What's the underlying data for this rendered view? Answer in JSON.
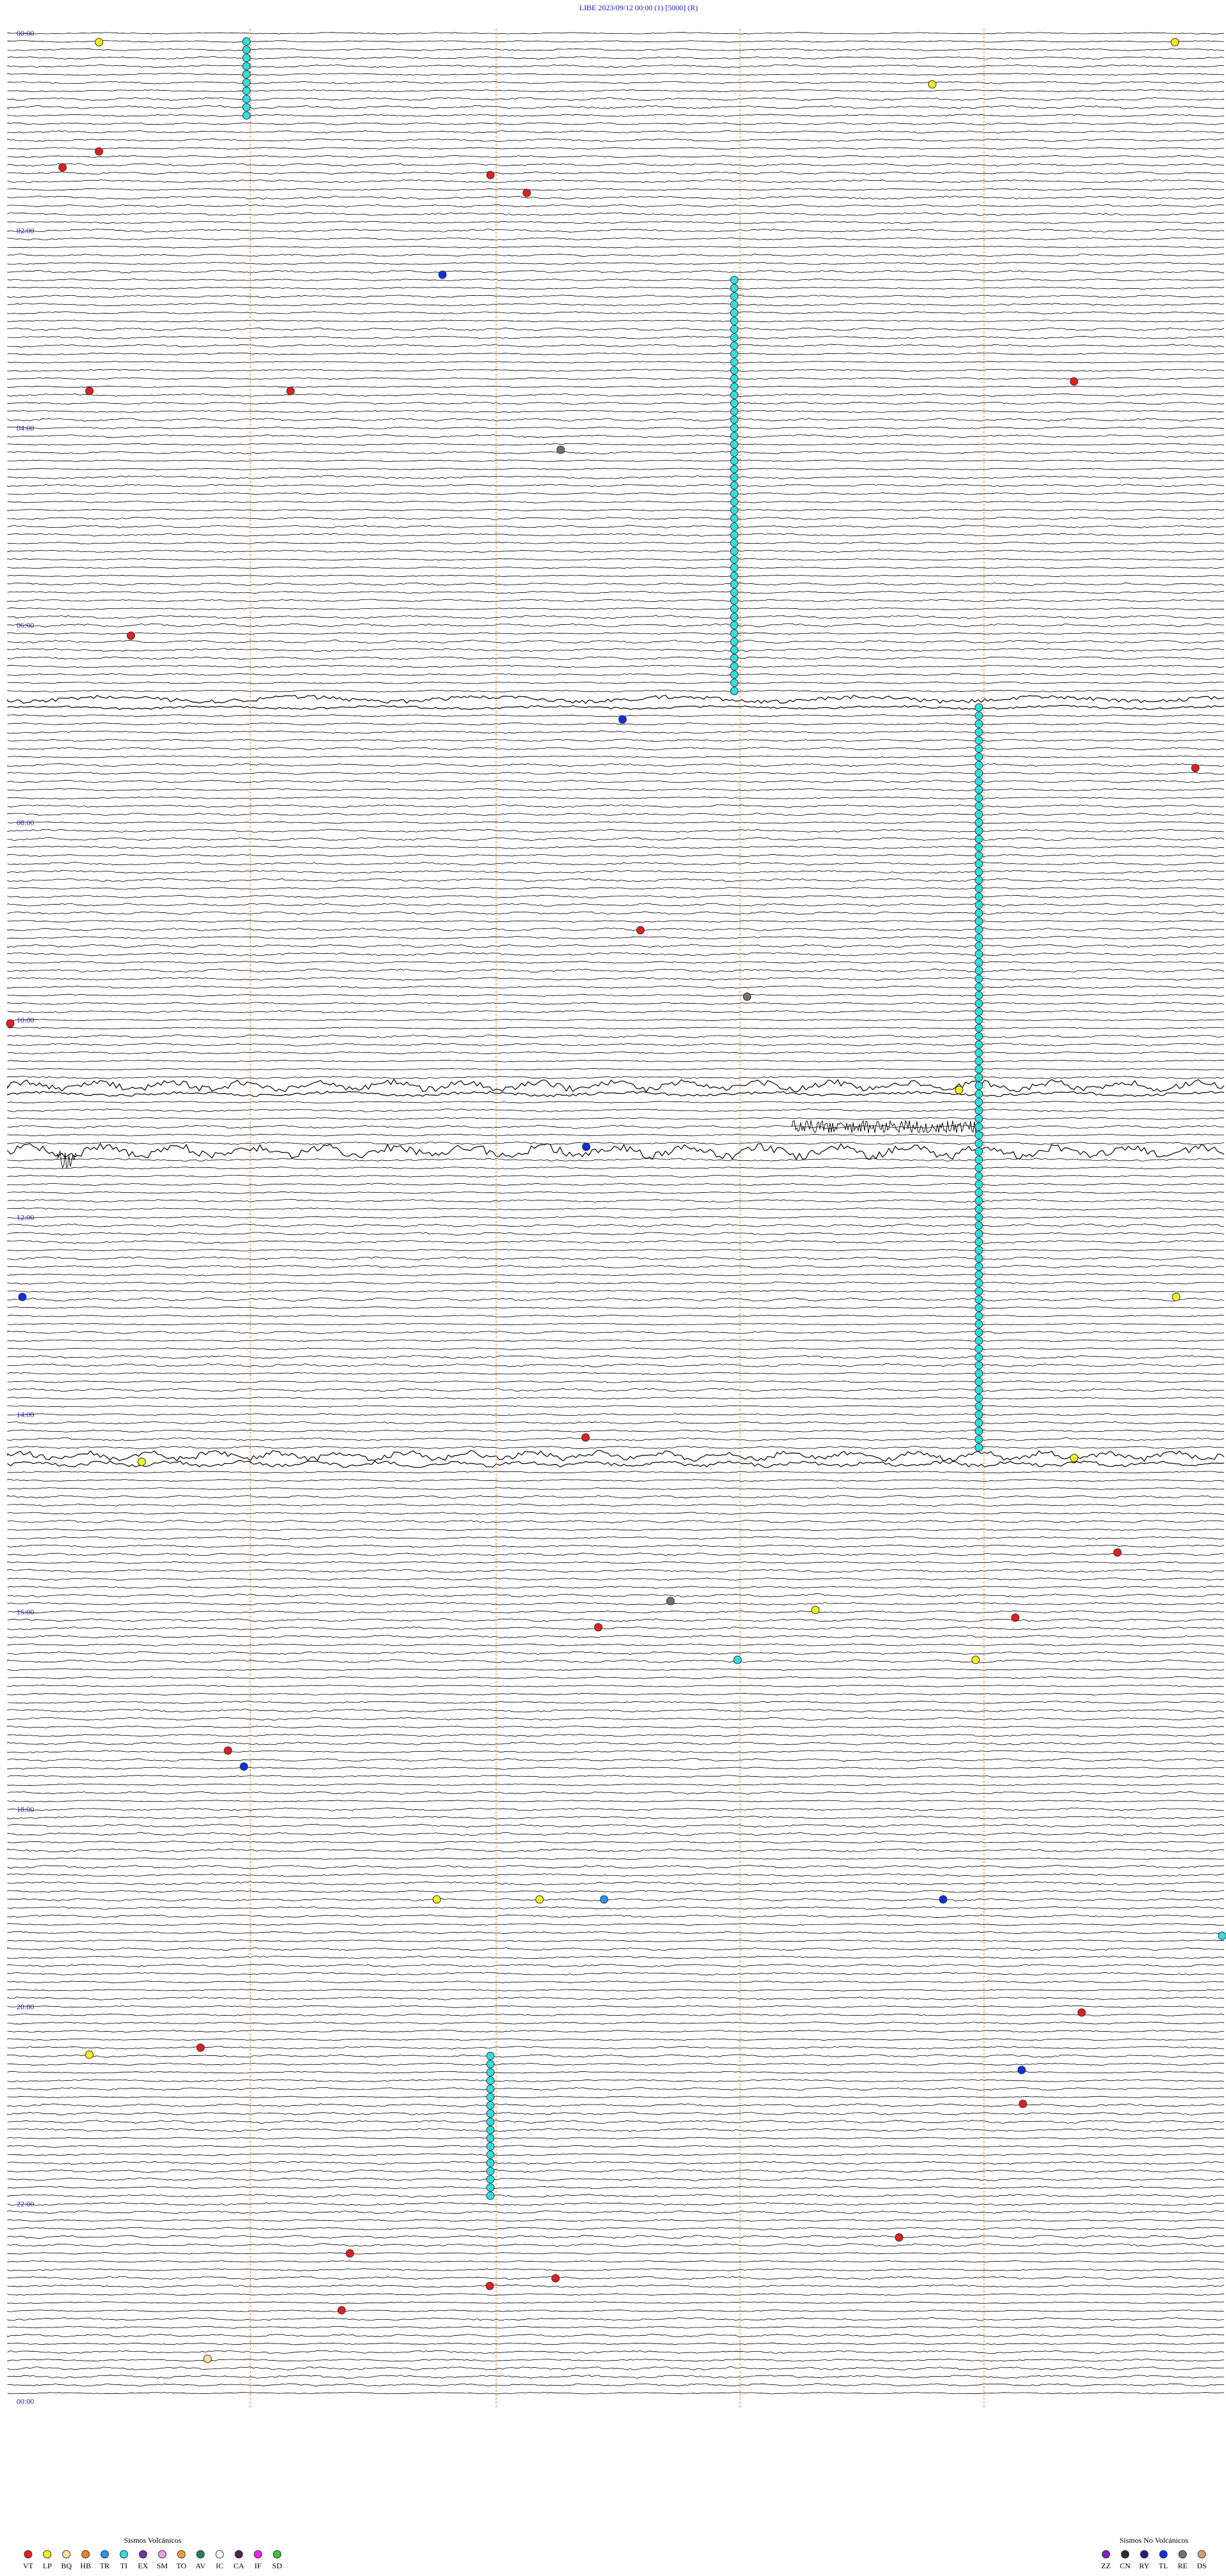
{
  "header": {
    "title": "LIBE    2023/09/12 00:00    (1)    [5000]    (R)"
  },
  "hour_labels": [
    "00:00",
    "02:00",
    "04:00",
    "06:00",
    "08:00",
    "10:00",
    "12:00",
    "14:00",
    "16:00",
    "18:00",
    "20:00",
    "22:00",
    "00:00"
  ],
  "legend": {
    "volcanic": {
      "title": "Sismos Volcánicos",
      "items": [
        {
          "code": "VT",
          "color": "#e02020"
        },
        {
          "code": "LP",
          "color": "#f0f020"
        },
        {
          "code": "BQ",
          "color": "#ffe0a0"
        },
        {
          "code": "HB",
          "color": "#f08020"
        },
        {
          "code": "TR",
          "color": "#3090f0"
        },
        {
          "code": "TI",
          "color": "#30e0e0"
        },
        {
          "code": "EX",
          "color": "#7030a0"
        },
        {
          "code": "SM",
          "color": "#f0a0e0"
        },
        {
          "code": "TO",
          "color": "#f0a030"
        },
        {
          "code": "AV",
          "color": "#208060"
        },
        {
          "code": "IC",
          "color": "#ffffff"
        },
        {
          "code": "CA",
          "color": "#502050"
        },
        {
          "code": "IF",
          "color": "#f020f0"
        },
        {
          "code": "SD",
          "color": "#40c040"
        }
      ]
    },
    "non_volcanic": {
      "title": "Sismos No Volcánicos",
      "items": [
        {
          "code": "ZZ",
          "color": "#8020c0"
        },
        {
          "code": "CN",
          "color": "#303030"
        },
        {
          "code": "RY",
          "color": "#202080"
        },
        {
          "code": "TL",
          "color": "#1030e0"
        },
        {
          "code": "RE",
          "color": "#707070"
        },
        {
          "code": "DS",
          "color": "#d0a070"
        }
      ]
    }
  }
}
